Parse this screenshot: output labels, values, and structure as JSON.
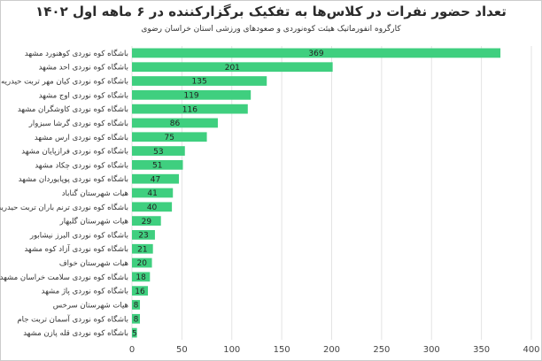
{
  "chart_data": {
    "type": "bar",
    "orientation": "horizontal",
    "title": "تعداد حضور نفرات در کلاس‌ها به تفکیک برگزارکننده در ۶ ماهه اول ۱۴۰۲",
    "subtitle": "کارگروه انفورماتیک هیئت کوه‌نوردی و صعودهای ورزشی استان خراسان رضوی",
    "categories": [
      "باشگاه کوه نوردی کوهنورد مشهد",
      "باشگاه کوه نوردی احد مشهد",
      "باشگاه کوه نوردی کیان مهر تربت حیدریه",
      "باشگاه کوه نوردی اوج مشهد",
      "باشگاه کوه نوردی کاوشگران مشهد",
      "باشگاه کوه نوردی گرشا سبزوار",
      "باشگاه کوه نوردی ارس مشهد",
      "باشگاه کوه نوردی فرازپایان مشهد",
      "باشگاه کوه نوردی چکاد مشهد",
      "باشگاه کوه نوردی پوپایوردان مشهد",
      "هیات شهرستان گناباد",
      "باشگاه کوه نوردی ترنم باران تربت حیدریه",
      "هیات شهرستان گلبهار",
      "باشگاه کوه نوردی البرز نیشابور",
      "باشگاه کوه نوردی آزاد کوه مشهد",
      "هیات شهرستان خواف",
      "باشگاه کوه نوردی سلامت خراسان مشهد",
      "باشگاه کوه نوردی پاژ مشهد",
      "هیات شهرستان سرخس",
      "باشگاه کوه نوردی آسمان تربت جام",
      "باشگاه کوه نوردی قله پازن مشهد"
    ],
    "values": [
      369,
      201,
      135,
      119,
      116,
      86,
      75,
      53,
      51,
      47,
      41,
      40,
      29,
      23,
      21,
      20,
      18,
      16,
      8,
      8,
      5
    ],
    "xlim": [
      0,
      400
    ],
    "xticks": [
      0,
      50,
      100,
      150,
      200,
      250,
      300,
      350,
      400
    ],
    "grid": true,
    "bar_color": "#3fcf7f",
    "border_color": "#cccccc"
  }
}
